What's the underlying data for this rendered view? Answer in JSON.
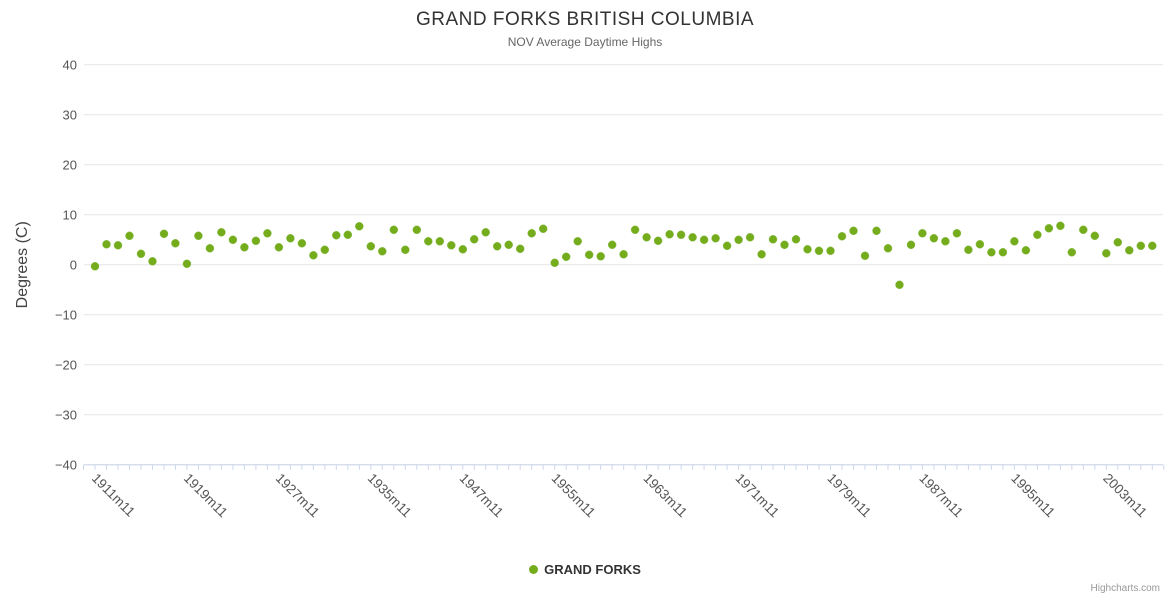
{
  "chart": {
    "title": "GRAND FORKS BRITISH COLUMBIA",
    "subtitle": "NOV Average Daytime Highs",
    "y_axis_title": "Degrees (C)",
    "legend": {
      "series_label": "GRAND FORKS"
    },
    "credits": "Highcharts.com"
  },
  "colors": {
    "point": "#74ac1c",
    "grid": "#e6e6e6",
    "axis_line": "#ccd6eb",
    "tick": "#ccd6eb",
    "axis_label": "#555555",
    "axis_title": "#444444",
    "title": "#333333",
    "subtitle": "#666666",
    "credits": "#999999"
  },
  "chart_data": {
    "type": "scatter",
    "title": "GRAND FORKS BRITISH COLUMBIA",
    "subtitle": "NOV Average Daytime Highs",
    "ylabel": "Degrees (C)",
    "ylim": [
      -40,
      40
    ],
    "y_tick_step": 10,
    "grid": "horizontal",
    "legend_position": "bottom-center",
    "x_tick_labels": [
      "1911m11",
      "1919m11",
      "1927m11",
      "1935m11",
      "1947m11",
      "1955m11",
      "1963m11",
      "1971m11",
      "1979m11",
      "1987m11",
      "1995m11",
      "2003m11"
    ],
    "x_label_every": 8,
    "n_points": 93,
    "series": [
      {
        "name": "GRAND FORKS",
        "color": "#74ac1c",
        "values": [
          -0.3,
          4.1,
          3.9,
          5.8,
          2.2,
          0.7,
          6.2,
          4.3,
          0.2,
          5.8,
          3.3,
          6.5,
          5.0,
          3.5,
          4.8,
          6.3,
          3.5,
          5.3,
          4.3,
          1.9,
          3.0,
          5.9,
          6.0,
          7.7,
          3.7,
          2.7,
          7.0,
          3.0,
          7.0,
          4.7,
          4.7,
          3.9,
          3.1,
          5.1,
          6.5,
          3.7,
          4.0,
          3.2,
          6.3,
          7.2,
          0.4,
          1.6,
          4.7,
          2.0,
          1.7,
          4.0,
          2.1,
          7.0,
          5.5,
          4.8,
          6.1,
          6.0,
          5.5,
          5.0,
          5.3,
          3.8,
          5.0,
          5.5,
          2.1,
          5.1,
          4.0,
          5.1,
          3.1,
          2.8,
          2.8,
          5.7,
          6.8,
          1.8,
          6.8,
          3.3,
          -4.0,
          4.0,
          6.3,
          5.3,
          4.7,
          6.3,
          3.0,
          4.1,
          2.5,
          2.5,
          4.7,
          2.9,
          6.0,
          7.3,
          7.8,
          2.5,
          7.0,
          5.8,
          2.3,
          4.5,
          2.9,
          3.8,
          3.8
        ]
      }
    ]
  }
}
